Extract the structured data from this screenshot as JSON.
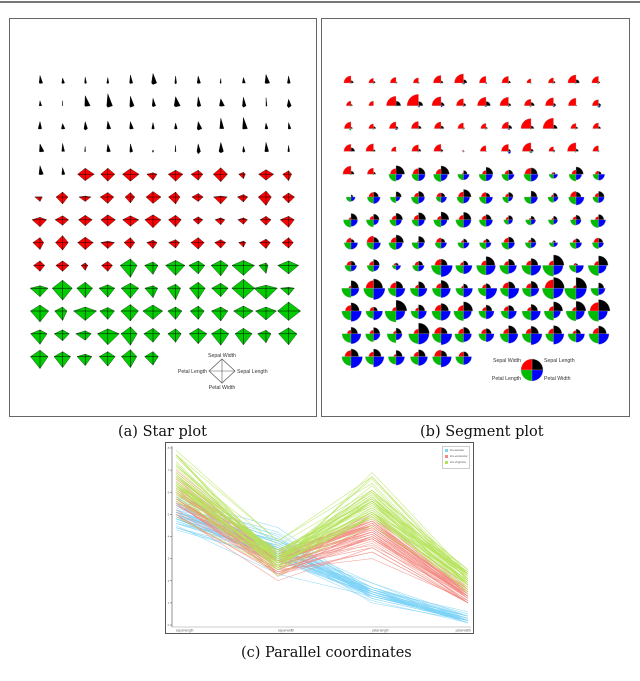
{
  "figure": {
    "captions": {
      "a": "(a) Star plot",
      "b": "(b) Segment plot",
      "c": "(c) Parallel coordinates"
    }
  },
  "chart_data": [
    {
      "type": "star",
      "title": "(a) Star plot",
      "dataset": "iris",
      "grid": {
        "columns": 12,
        "rows": 13
      },
      "key": {
        "top": "Sepal Width",
        "right": "Sepal Length",
        "bottom": "Petal Width",
        "left": "Petal Length"
      },
      "species_colors": {
        "setosa": "#000000",
        "versicolor": "#ff0000",
        "virginica": "#00cc00"
      },
      "variables": [
        "Sepal Length",
        "Sepal Width",
        "Petal Length",
        "Petal Width"
      ]
    },
    {
      "type": "segment",
      "title": "(b) Segment plot",
      "dataset": "iris",
      "grid": {
        "columns": 12,
        "rows": 13
      },
      "key": {
        "top_left": "Sepal Width",
        "top_right": "Sepal Length",
        "bottom_left": "Petal Length",
        "bottom_right": "Petal Width"
      },
      "segment_colors": {
        "Sepal Length": "#000000",
        "Sepal Width": "#ff0000",
        "Petal Length": "#00bb00",
        "Petal Width": "#0000ff"
      }
    },
    {
      "type": "line",
      "subtype": "parallel_coordinates",
      "title": "(c) Parallel coordinates",
      "axes": [
        "sepal-length",
        "sepal-width",
        "petal-length",
        "petal-width"
      ],
      "ylim": [
        0,
        8
      ],
      "yticks": [
        0,
        1,
        2,
        3,
        4,
        5,
        6,
        7,
        8
      ],
      "legend": {
        "position": "top-right",
        "entries": [
          {
            "label": "iris-setosa",
            "color": "#7fd3f7"
          },
          {
            "label": "iris-versicolor",
            "color": "#f28b82"
          },
          {
            "label": "iris-virginica",
            "color": "#b5e35a"
          }
        ]
      }
    }
  ],
  "iris": {
    "setosa": [
      [
        5.1,
        3.5,
        1.4,
        0.2
      ],
      [
        4.9,
        3.0,
        1.4,
        0.2
      ],
      [
        4.7,
        3.2,
        1.3,
        0.2
      ],
      [
        4.6,
        3.1,
        1.5,
        0.2
      ],
      [
        5.0,
        3.6,
        1.4,
        0.2
      ],
      [
        5.4,
        3.9,
        1.7,
        0.4
      ],
      [
        4.6,
        3.4,
        1.4,
        0.3
      ],
      [
        5.0,
        3.4,
        1.5,
        0.2
      ],
      [
        4.4,
        2.9,
        1.4,
        0.2
      ],
      [
        4.9,
        3.1,
        1.5,
        0.1
      ],
      [
        5.4,
        3.7,
        1.5,
        0.2
      ],
      [
        4.8,
        3.4,
        1.6,
        0.2
      ],
      [
        4.8,
        3.0,
        1.4,
        0.1
      ],
      [
        4.3,
        3.0,
        1.1,
        0.1
      ],
      [
        5.8,
        4.0,
        1.2,
        0.2
      ],
      [
        5.7,
        4.4,
        1.5,
        0.4
      ],
      [
        5.4,
        3.9,
        1.3,
        0.4
      ],
      [
        5.1,
        3.5,
        1.4,
        0.3
      ],
      [
        5.7,
        3.8,
        1.7,
        0.3
      ],
      [
        5.1,
        3.8,
        1.5,
        0.3
      ],
      [
        5.4,
        3.4,
        1.7,
        0.2
      ],
      [
        5.1,
        3.7,
        1.5,
        0.4
      ],
      [
        4.6,
        3.6,
        1.0,
        0.2
      ],
      [
        5.1,
        3.3,
        1.7,
        0.5
      ],
      [
        4.8,
        3.4,
        1.9,
        0.2
      ],
      [
        5.0,
        3.0,
        1.6,
        0.2
      ],
      [
        5.0,
        3.4,
        1.6,
        0.4
      ],
      [
        5.2,
        3.5,
        1.5,
        0.2
      ],
      [
        5.2,
        3.4,
        1.4,
        0.2
      ],
      [
        4.7,
        3.2,
        1.6,
        0.2
      ],
      [
        4.8,
        3.1,
        1.6,
        0.2
      ],
      [
        5.4,
        3.4,
        1.5,
        0.4
      ],
      [
        5.2,
        4.1,
        1.5,
        0.1
      ],
      [
        5.5,
        4.2,
        1.4,
        0.2
      ],
      [
        4.9,
        3.1,
        1.5,
        0.2
      ],
      [
        5.0,
        3.2,
        1.2,
        0.2
      ],
      [
        5.5,
        3.5,
        1.3,
        0.2
      ],
      [
        4.9,
        3.6,
        1.4,
        0.1
      ],
      [
        4.4,
        3.0,
        1.3,
        0.2
      ],
      [
        5.1,
        3.4,
        1.5,
        0.2
      ],
      [
        5.0,
        3.5,
        1.3,
        0.3
      ],
      [
        4.5,
        2.3,
        1.3,
        0.3
      ],
      [
        4.4,
        3.2,
        1.3,
        0.2
      ],
      [
        5.0,
        3.5,
        1.6,
        0.6
      ],
      [
        5.1,
        3.8,
        1.9,
        0.4
      ],
      [
        4.8,
        3.0,
        1.4,
        0.3
      ],
      [
        5.1,
        3.8,
        1.6,
        0.2
      ],
      [
        4.6,
        3.2,
        1.4,
        0.2
      ],
      [
        5.3,
        3.7,
        1.5,
        0.2
      ],
      [
        5.0,
        3.3,
        1.4,
        0.2
      ]
    ],
    "versicolor": [
      [
        7.0,
        3.2,
        4.7,
        1.4
      ],
      [
        6.4,
        3.2,
        4.5,
        1.5
      ],
      [
        6.9,
        3.1,
        4.9,
        1.5
      ],
      [
        5.5,
        2.3,
        4.0,
        1.3
      ],
      [
        6.5,
        2.8,
        4.6,
        1.5
      ],
      [
        5.7,
        2.8,
        4.5,
        1.3
      ],
      [
        6.3,
        3.3,
        4.7,
        1.6
      ],
      [
        4.9,
        2.4,
        3.3,
        1.0
      ],
      [
        6.6,
        2.9,
        4.6,
        1.3
      ],
      [
        5.2,
        2.7,
        3.9,
        1.4
      ],
      [
        5.0,
        2.0,
        3.5,
        1.0
      ],
      [
        5.9,
        3.0,
        4.2,
        1.5
      ],
      [
        6.0,
        2.2,
        4.0,
        1.0
      ],
      [
        6.1,
        2.9,
        4.7,
        1.4
      ],
      [
        5.6,
        2.9,
        3.6,
        1.3
      ],
      [
        6.7,
        3.1,
        4.4,
        1.4
      ],
      [
        5.6,
        3.0,
        4.5,
        1.5
      ],
      [
        5.8,
        2.7,
        4.1,
        1.0
      ],
      [
        6.2,
        2.2,
        4.5,
        1.5
      ],
      [
        5.6,
        2.5,
        3.9,
        1.1
      ],
      [
        5.9,
        3.2,
        4.8,
        1.8
      ],
      [
        6.1,
        2.8,
        4.0,
        1.3
      ],
      [
        6.3,
        2.5,
        4.9,
        1.5
      ],
      [
        6.1,
        2.8,
        4.7,
        1.2
      ],
      [
        6.4,
        2.9,
        4.3,
        1.3
      ],
      [
        6.6,
        3.0,
        4.4,
        1.4
      ],
      [
        6.8,
        2.8,
        4.8,
        1.4
      ],
      [
        6.7,
        3.0,
        5.0,
        1.7
      ],
      [
        6.0,
        2.9,
        4.5,
        1.5
      ],
      [
        5.7,
        2.6,
        3.5,
        1.0
      ],
      [
        5.5,
        2.4,
        3.8,
        1.1
      ],
      [
        5.5,
        2.4,
        3.7,
        1.0
      ],
      [
        5.8,
        2.7,
        3.9,
        1.2
      ],
      [
        6.0,
        2.7,
        5.1,
        1.6
      ],
      [
        5.4,
        3.0,
        4.5,
        1.5
      ],
      [
        6.0,
        3.4,
        4.5,
        1.6
      ],
      [
        6.7,
        3.1,
        4.7,
        1.5
      ],
      [
        6.3,
        2.3,
        4.4,
        1.3
      ],
      [
        5.6,
        3.0,
        4.1,
        1.3
      ],
      [
        5.5,
        2.5,
        4.0,
        1.3
      ],
      [
        5.5,
        2.6,
        4.4,
        1.2
      ],
      [
        6.1,
        3.0,
        4.6,
        1.4
      ],
      [
        5.8,
        2.6,
        4.0,
        1.2
      ],
      [
        5.0,
        2.3,
        3.3,
        1.0
      ],
      [
        5.6,
        2.7,
        4.2,
        1.3
      ],
      [
        5.7,
        3.0,
        4.2,
        1.2
      ],
      [
        5.7,
        2.9,
        4.2,
        1.3
      ],
      [
        6.2,
        2.9,
        4.3,
        1.3
      ],
      [
        5.1,
        2.5,
        3.0,
        1.1
      ],
      [
        5.7,
        2.8,
        4.1,
        1.3
      ]
    ],
    "virginica": [
      [
        6.3,
        3.3,
        6.0,
        2.5
      ],
      [
        5.8,
        2.7,
        5.1,
        1.9
      ],
      [
        7.1,
        3.0,
        5.9,
        2.1
      ],
      [
        6.3,
        2.9,
        5.6,
        1.8
      ],
      [
        6.5,
        3.0,
        5.8,
        2.2
      ],
      [
        7.6,
        3.0,
        6.6,
        2.1
      ],
      [
        4.9,
        2.5,
        4.5,
        1.7
      ],
      [
        7.3,
        2.9,
        6.3,
        1.8
      ],
      [
        6.7,
        2.5,
        5.8,
        1.8
      ],
      [
        7.2,
        3.6,
        6.1,
        2.5
      ],
      [
        6.5,
        3.2,
        5.1,
        2.0
      ],
      [
        6.4,
        2.7,
        5.3,
        1.9
      ],
      [
        6.8,
        3.0,
        5.5,
        2.1
      ],
      [
        5.7,
        2.5,
        5.0,
        2.0
      ],
      [
        5.8,
        2.8,
        5.1,
        2.4
      ],
      [
        6.4,
        3.2,
        5.3,
        2.3
      ],
      [
        6.5,
        3.0,
        5.5,
        1.8
      ],
      [
        7.7,
        3.8,
        6.7,
        2.2
      ],
      [
        7.7,
        2.6,
        6.9,
        2.3
      ],
      [
        6.0,
        2.2,
        5.0,
        1.5
      ],
      [
        6.9,
        3.2,
        5.7,
        2.3
      ],
      [
        5.6,
        2.8,
        4.9,
        2.0
      ],
      [
        7.7,
        2.8,
        6.7,
        2.0
      ],
      [
        6.3,
        2.7,
        4.9,
        1.8
      ],
      [
        6.7,
        3.3,
        5.7,
        2.1
      ],
      [
        7.2,
        3.2,
        6.0,
        1.8
      ],
      [
        6.2,
        2.8,
        4.8,
        1.8
      ],
      [
        6.1,
        3.0,
        4.9,
        1.8
      ],
      [
        6.4,
        2.8,
        5.6,
        2.1
      ],
      [
        7.2,
        3.0,
        5.8,
        1.6
      ],
      [
        7.4,
        2.8,
        6.1,
        1.9
      ],
      [
        7.9,
        3.8,
        6.4,
        2.0
      ],
      [
        6.4,
        2.8,
        5.6,
        2.2
      ],
      [
        6.3,
        2.8,
        5.1,
        1.5
      ],
      [
        6.1,
        2.6,
        5.6,
        1.4
      ],
      [
        7.7,
        3.0,
        6.1,
        2.3
      ],
      [
        6.3,
        3.4,
        5.6,
        2.4
      ],
      [
        6.4,
        3.1,
        5.5,
        1.8
      ],
      [
        6.0,
        3.0,
        4.8,
        1.8
      ],
      [
        6.9,
        3.1,
        5.4,
        2.1
      ],
      [
        6.7,
        3.1,
        5.6,
        2.4
      ],
      [
        6.9,
        3.1,
        5.1,
        2.3
      ],
      [
        5.8,
        2.7,
        5.1,
        1.9
      ],
      [
        6.8,
        3.2,
        5.9,
        2.3
      ],
      [
        6.7,
        3.3,
        5.7,
        2.5
      ],
      [
        6.7,
        3.0,
        5.2,
        2.3
      ],
      [
        6.3,
        2.5,
        5.0,
        1.9
      ],
      [
        6.5,
        3.0,
        5.2,
        2.0
      ],
      [
        6.2,
        3.4,
        5.4,
        2.3
      ],
      [
        5.9,
        3.0,
        5.1,
        1.8
      ]
    ]
  }
}
